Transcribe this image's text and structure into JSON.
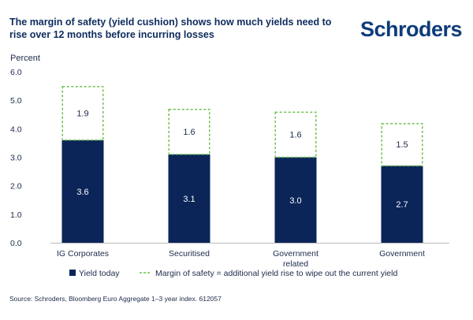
{
  "title": "The margin of safety (yield cushion) shows how much yields need to rise over 12 months before incurring losses",
  "brand": "Schroders",
  "source": "Source: Schroders, Bloomberg Euro Aggregate 1–3 year index. 612057",
  "colors": {
    "bar": "#0b2559",
    "margin": "#6cc24a",
    "axis": "#bbbbbb",
    "text": "#1b2a4a",
    "brand": "#0d3c7a"
  },
  "chart_data": {
    "type": "bar",
    "stacked": true,
    "ylabel": "Percent",
    "ylim": [
      0,
      6
    ],
    "yticks": [
      "0.0",
      "1.0",
      "2.0",
      "3.0",
      "4.0",
      "5.0",
      "6.0"
    ],
    "grid": false,
    "legend_position": "bottom",
    "categories": [
      [
        "IG Corporates"
      ],
      [
        "Securitised"
      ],
      [
        "Government",
        "related"
      ],
      [
        "Government"
      ]
    ],
    "series": [
      {
        "name": "Yield today",
        "values": [
          3.6,
          3.1,
          3.0,
          2.7
        ],
        "labels": [
          "3.6",
          "3.1",
          "3.0",
          "2.7"
        ],
        "style": "solid"
      },
      {
        "name": "Margin of safety = additional yield rise to wipe out the current yield",
        "values": [
          1.9,
          1.6,
          1.6,
          1.5
        ],
        "labels": [
          "1.9",
          "1.6",
          "1.6",
          "1.5"
        ],
        "style": "dashed"
      }
    ]
  }
}
